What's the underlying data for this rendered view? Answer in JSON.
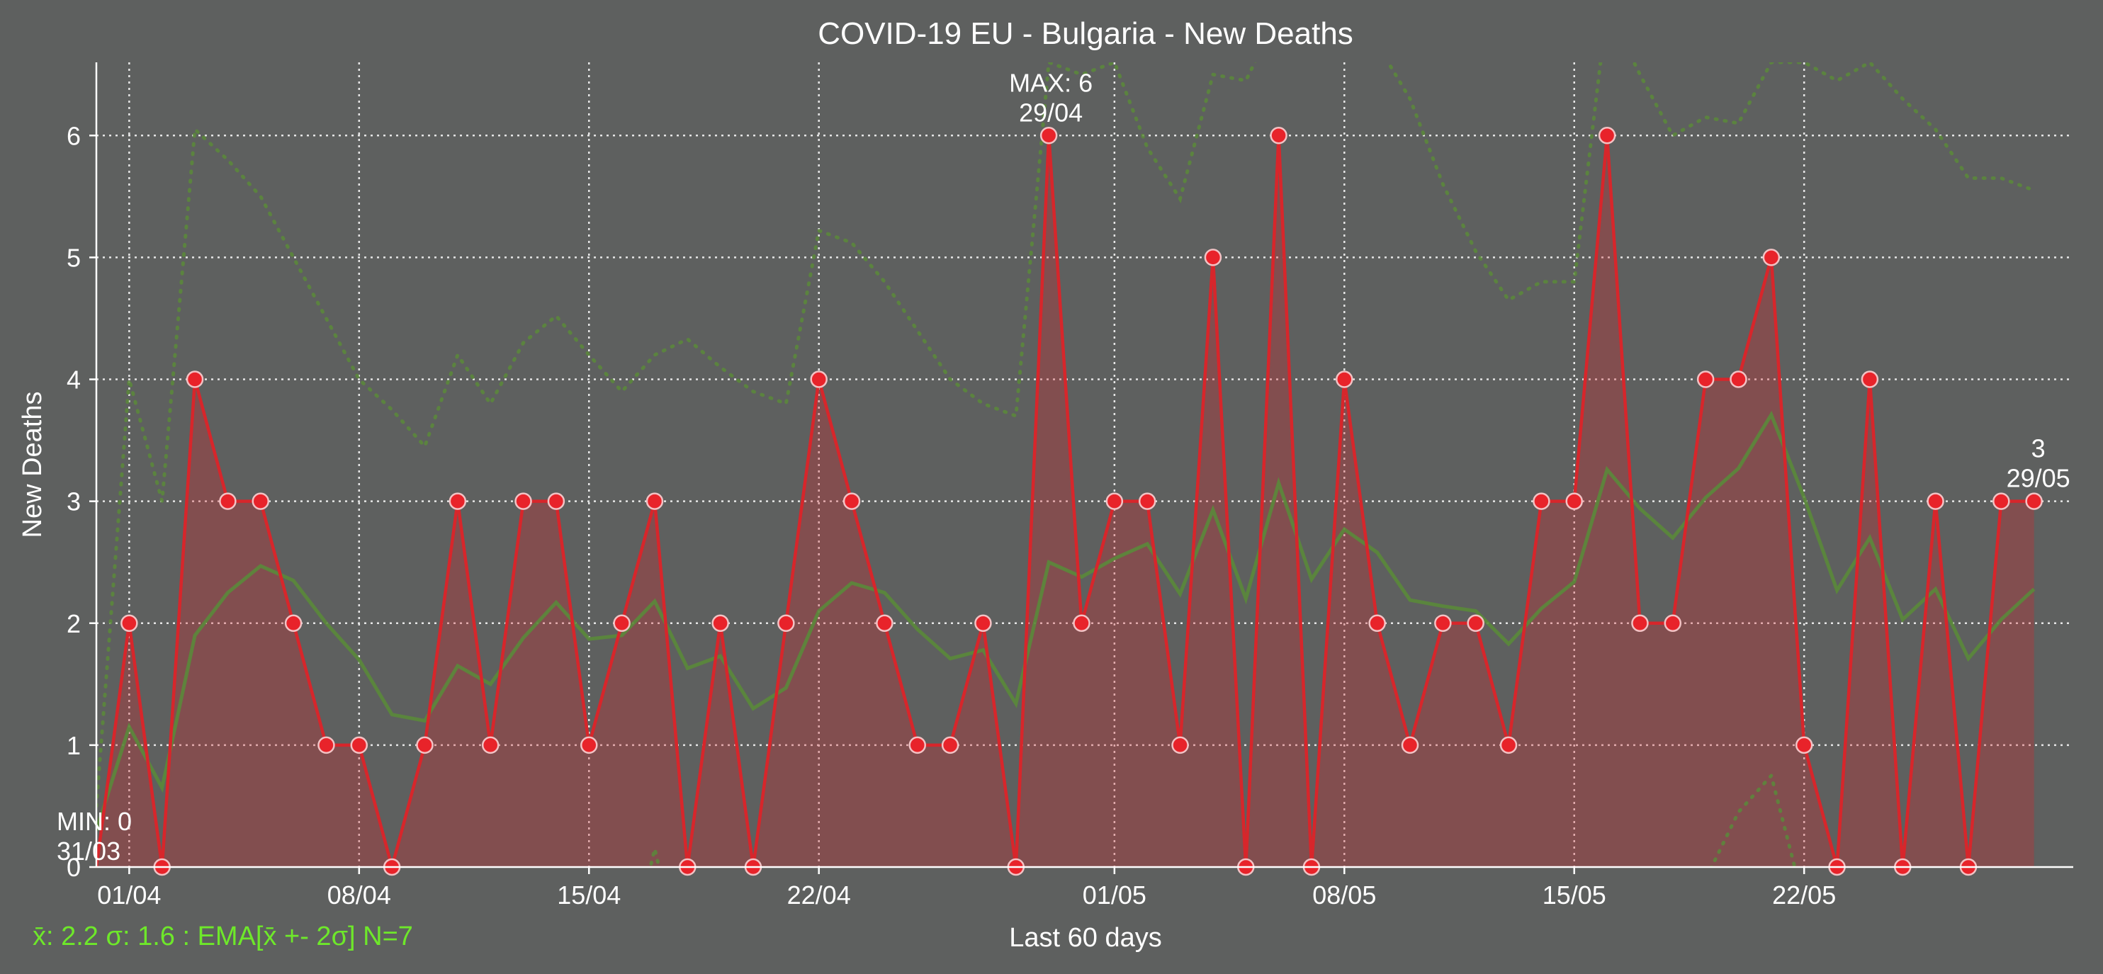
{
  "chart_data": {
    "type": "line",
    "title": "COVID-19 EU - Bulgaria - New Deaths",
    "xlabel": "Last 60 days",
    "ylabel": "New Deaths",
    "ylim": [
      0,
      6.6
    ],
    "yticks": [
      "0",
      "1",
      "2",
      "3",
      "4",
      "5",
      "6"
    ],
    "xticks": [
      {
        "day": 1,
        "label": "01/04"
      },
      {
        "day": 8,
        "label": "08/04"
      },
      {
        "day": 15,
        "label": "15/04"
      },
      {
        "day": 22,
        "label": "22/04"
      },
      {
        "day": 31,
        "label": "01/05"
      },
      {
        "day": 38,
        "label": "08/05"
      },
      {
        "day": 45,
        "label": "15/05"
      },
      {
        "day": 52,
        "label": "22/05"
      }
    ],
    "grid": true,
    "x_day_range": [
      0,
      60
    ],
    "series": [
      {
        "role": "new_deaths",
        "color": "#d7262b",
        "values": [
          0,
          2,
          0,
          4,
          3,
          3,
          2,
          1,
          1,
          0,
          1,
          3,
          1,
          3,
          3,
          1,
          2,
          3,
          0,
          2,
          0,
          2,
          4,
          3,
          2,
          1,
          1,
          2,
          0,
          6,
          2,
          3,
          3,
          1,
          5,
          0,
          6,
          0,
          4,
          2,
          1,
          2,
          2,
          1,
          3,
          3,
          6,
          2,
          2,
          4,
          4,
          5,
          1,
          0,
          4,
          0,
          3,
          0,
          3,
          3
        ]
      },
      {
        "role": "ema",
        "color": "#5a8a3a",
        "values": [
          0.3,
          1.15,
          0.65,
          1.9,
          2.25,
          2.47,
          2.35,
          2.0,
          1.7,
          1.25,
          1.2,
          1.65,
          1.5,
          1.88,
          2.17,
          1.87,
          1.9,
          2.18,
          1.63,
          1.73,
          1.3,
          1.47,
          2.1,
          2.33,
          2.25,
          1.95,
          1.71,
          1.78,
          1.34,
          2.5,
          2.38,
          2.53,
          2.65,
          2.24,
          2.93,
          2.2,
          3.15,
          2.36,
          2.77,
          2.58,
          2.19,
          2.14,
          2.1,
          1.83,
          2.12,
          2.34,
          3.26,
          2.94,
          2.7,
          3.03,
          3.27,
          3.71,
          3.03,
          2.27,
          2.7,
          2.03,
          2.28,
          1.71,
          2.03,
          2.28
        ]
      },
      {
        "role": "ema_upper",
        "color": "#5a8a3a",
        "values": [
          0.5,
          4.0,
          3.0,
          6.05,
          5.8,
          5.5,
          5.0,
          4.5,
          4.0,
          3.75,
          3.45,
          4.2,
          3.8,
          4.3,
          4.52,
          4.2,
          3.9,
          4.2,
          4.33,
          4.1,
          3.9,
          3.8,
          5.22,
          5.12,
          4.8,
          4.4,
          4.0,
          3.8,
          3.7,
          6.6,
          6.5,
          6.6,
          5.9,
          5.48,
          6.5,
          6.45,
          7.0,
          6.9,
          6.9,
          6.75,
          6.3,
          5.6,
          5.05,
          4.65,
          4.8,
          4.8,
          7.05,
          6.5,
          6.0,
          6.15,
          6.1,
          6.6,
          6.6,
          6.45,
          6.6,
          6.3,
          6.05,
          5.65,
          5.65,
          5.55
        ]
      },
      {
        "role": "ema_lower",
        "color": "#5a8a3a",
        "values": [
          -1,
          -1,
          -1,
          -1,
          -1,
          -1,
          -1,
          -1,
          -1,
          -1,
          -1,
          -1,
          -1,
          -1,
          -1,
          -1,
          -1,
          0.15,
          -1,
          -1,
          -1,
          -1,
          -1,
          -1,
          -1,
          -1,
          -1,
          -1,
          -1,
          -1,
          -1,
          -1,
          -1,
          -1,
          -1,
          -1,
          -1,
          -1,
          -1,
          -1,
          -1,
          -1,
          -1,
          -1,
          -1,
          -1,
          -1,
          -1,
          -1,
          -0.1,
          0.45,
          0.75,
          -0.3,
          -1,
          -1,
          -1,
          -1,
          -1,
          -1,
          -1
        ]
      }
    ],
    "annotations": {
      "max": {
        "day": 29,
        "value_label": "MAX: 6",
        "date_label": "29/04"
      },
      "min": {
        "day": 0,
        "value_label": "MIN: 0",
        "date_label": "31/03"
      },
      "last": {
        "day": 59,
        "value_label": "3",
        "date_label": "29/05"
      }
    },
    "stats_label": "x̄: 2.2 σ: 1.6 : EMA[x̄ +- 2σ] N=7"
  }
}
